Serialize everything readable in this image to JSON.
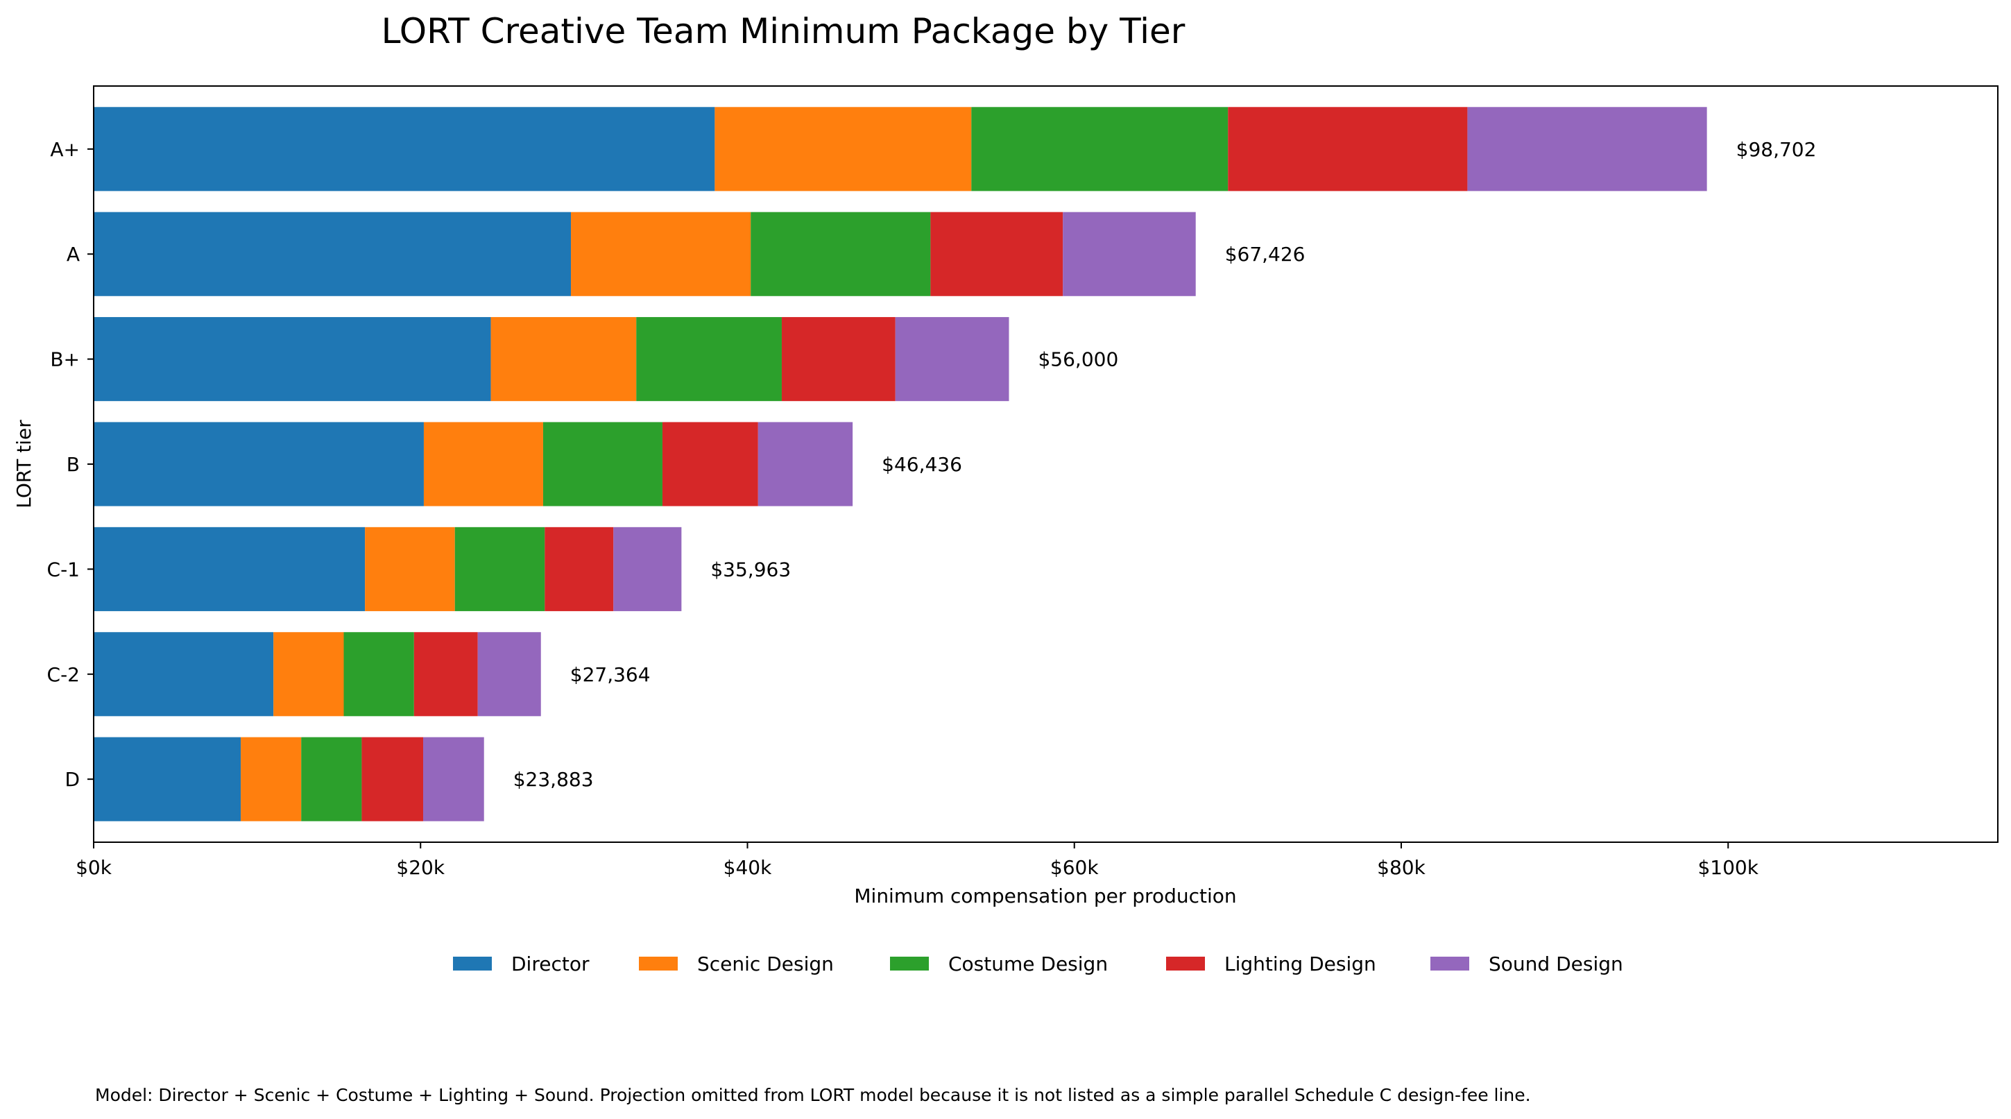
{
  "chart_data": {
    "type": "bar",
    "orientation": "horizontal",
    "stacked": true,
    "title": "LORT Creative Team Minimum Package by Tier",
    "xlabel": "Minimum compensation per production",
    "ylabel": "LORT tier",
    "xlim": [
      0,
      116500
    ],
    "x_ticks": [
      {
        "value": 0,
        "label": "$0k"
      },
      {
        "value": 20000,
        "label": "$20k"
      },
      {
        "value": 40000,
        "label": "$40k"
      },
      {
        "value": 60000,
        "label": "$60k"
      },
      {
        "value": 80000,
        "label": "$80k"
      },
      {
        "value": 100000,
        "label": "$100k"
      }
    ],
    "categories": [
      "A+",
      "A",
      "B+",
      "B",
      "C-1",
      "C-2",
      "D"
    ],
    "series": [
      {
        "name": "Director",
        "color": "#1f77b4",
        "values": [
          38000,
          29200,
          24300,
          20200,
          16600,
          11000,
          9000
        ]
      },
      {
        "name": "Scenic Design",
        "color": "#ff7f0e",
        "values": [
          15700,
          11000,
          8900,
          7300,
          5500,
          4300,
          3700
        ]
      },
      {
        "name": "Costume Design",
        "color": "#2ca02c",
        "values": [
          15700,
          11000,
          8900,
          7300,
          5500,
          4300,
          3700
        ]
      },
      {
        "name": "Lighting Design",
        "color": "#d62728",
        "values": [
          14650,
          8100,
          6950,
          5850,
          4200,
          3900,
          3760
        ]
      },
      {
        "name": "Sound Design",
        "color": "#9467bd",
        "values": [
          14652,
          8126,
          6950,
          5786,
          4163,
          3864,
          3723
        ]
      }
    ],
    "totals": [
      "$98,702",
      "$67,426",
      "$56,000",
      "$46,436",
      "$35,963",
      "$27,364",
      "$23,883"
    ],
    "legend_position": "bottom-center",
    "grid": false
  },
  "footnote": "Model: Director + Scenic + Costume + Lighting + Sound. Projection omitted from LORT model because it is not listed as a simple parallel Schedule C design-fee line."
}
